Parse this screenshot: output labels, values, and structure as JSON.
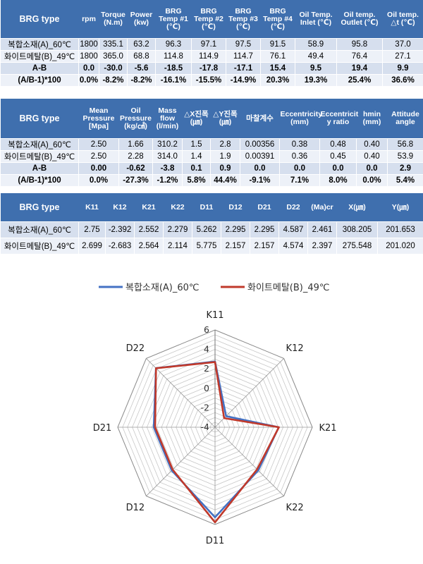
{
  "table1": {
    "headers": [
      "BRG type",
      "rpm",
      "Torque (N.m)",
      "Power (kw)",
      "BRG Temp #1 (℃)",
      "BRG Temp #2 (℃)",
      "BRG Temp #3 (℃)",
      "BRG Temp #4 (℃)",
      "Oil Temp. Inlet (℃)",
      "Oil temp. Outlet (℃)",
      "Oil temp. △t (℃)"
    ],
    "rows": [
      [
        "복합소재(A)_60℃",
        "1800",
        "335.1",
        "63.2",
        "96.3",
        "97.1",
        "97.5",
        "91.5",
        "58.9",
        "95.8",
        "37.0"
      ],
      [
        "화이트메탈(B)_49℃",
        "1800",
        "365.0",
        "68.8",
        "114.8",
        "114.9",
        "114.7",
        "76.1",
        "49.4",
        "76.4",
        "27.1"
      ],
      [
        "A-B",
        "0.0",
        "-30.0",
        "-5.6",
        "-18.5",
        "-17.8",
        "-17.1",
        "15.4",
        "9.5",
        "19.4",
        "9.9"
      ],
      [
        "(A/B-1)*100",
        "0.0%",
        "-8.2%",
        "-8.2%",
        "-16.1%",
        "-15.5%",
        "-14.9%",
        "20.3%",
        "19.3%",
        "25.4%",
        "36.6%"
      ]
    ]
  },
  "table2": {
    "headers": [
      "BRG type",
      "Mean Pressure [Mpa]",
      "Oil Pressure (kg/㎠)",
      "Mass flow (l/min)",
      "△X진폭 (㎛)",
      "△Y진폭 (㎛)",
      "마찰계수",
      "Eccentricity (mm)",
      "Eccentricit y ratio",
      "hmin (mm)",
      "Attitude angle"
    ],
    "rows": [
      [
        "복합소재(A)_60℃",
        "2.50",
        "1.66",
        "310.2",
        "1.5",
        "2.8",
        "0.00356",
        "0.38",
        "0.48",
        "0.40",
        "56.8"
      ],
      [
        "화이트메탈(B)_49℃",
        "2.50",
        "2.28",
        "314.0",
        "1.4",
        "1.9",
        "0.00391",
        "0.36",
        "0.45",
        "0.40",
        "53.9"
      ],
      [
        "A-B",
        "0.00",
        "-0.62",
        "-3.8",
        "0.1",
        "0.9",
        "0.0",
        "0.0",
        "0.0",
        "0.0",
        "2.9"
      ],
      [
        "(A/B-1)*100",
        "0.0%",
        "-27.3%",
        "-1.2%",
        "5.8%",
        "44.4%",
        "-9.1%",
        "7.1%",
        "8.0%",
        "0.0%",
        "5.4%"
      ]
    ]
  },
  "table3": {
    "headers": [
      "BRG type",
      "K11",
      "K12",
      "K21",
      "K22",
      "D11",
      "D12",
      "D21",
      "D22",
      "(Ma)cr",
      "X(㎛)",
      "Y(㎛)"
    ],
    "rows": [
      [
        "복합소재(A)_60℃",
        "2.75",
        "-2.392",
        "2.552",
        "2.279",
        "5.262",
        "2.295",
        "2.295",
        "4.587",
        "2.461",
        "308.205",
        "201.653"
      ],
      [
        "화이트메탈(B)_49℃",
        "2.699",
        "-2.683",
        "2.564",
        "2.114",
        "5.775",
        "2.157",
        "2.157",
        "4.574",
        "2.397",
        "275.548",
        "201.020"
      ]
    ]
  },
  "chart_data": {
    "type": "radar",
    "categories": [
      "K11",
      "K12",
      "K21",
      "K22",
      "D11",
      "D12",
      "D21",
      "D22"
    ],
    "rlim": [
      -4,
      6
    ],
    "ticks": [
      "6",
      "4",
      "2",
      "0",
      "-2",
      "-4"
    ],
    "tick_values": [
      6,
      4,
      2,
      0,
      -2,
      -4
    ],
    "grid": true,
    "legend_position": "top",
    "series": [
      {
        "name": "복합소재(A)_60℃",
        "color": "#4472c4",
        "values": [
          2.75,
          -2.392,
          2.552,
          2.279,
          5.262,
          2.295,
          2.295,
          4.587
        ]
      },
      {
        "name": "화이트메탈(B)_49℃",
        "color": "#c0392b",
        "values": [
          2.699,
          -2.683,
          2.564,
          2.114,
          5.775,
          2.157,
          2.157,
          4.574
        ]
      }
    ]
  }
}
